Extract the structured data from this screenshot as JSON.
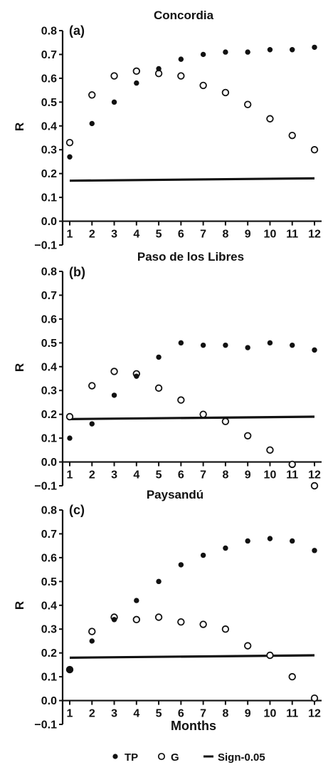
{
  "chart_data": [
    {
      "type": "scatter",
      "panel_label": "(a)",
      "title": "Concordia",
      "ylabel": "R",
      "xlabel": "",
      "ylim": [
        -0.1,
        0.8
      ],
      "yticks": [
        "0.8",
        "0.7",
        "0.6",
        "0.5",
        "0.4",
        "0.3",
        "0.2",
        "0.1",
        "0.0",
        "−0.1"
      ],
      "x": [
        1,
        2,
        3,
        4,
        5,
        6,
        7,
        8,
        9,
        10,
        11,
        12
      ],
      "xticks": [
        "1",
        "2",
        "3",
        "4",
        "5",
        "6",
        "7",
        "8",
        "9",
        "10",
        "11",
        "12"
      ],
      "series": [
        {
          "name": "TP",
          "marker": "filled",
          "values": [
            0.27,
            0.41,
            0.5,
            0.58,
            0.64,
            0.68,
            0.7,
            0.71,
            0.71,
            0.72,
            0.72,
            0.73
          ]
        },
        {
          "name": "G",
          "marker": "open",
          "values": [
            0.33,
            0.53,
            0.61,
            0.63,
            0.62,
            0.61,
            0.57,
            0.54,
            0.49,
            0.43,
            0.36,
            0.3
          ]
        },
        {
          "name": "Sign-0.05",
          "marker": "line",
          "values": [
            0.17,
            0.17,
            0.17,
            0.17,
            0.17,
            0.17,
            0.17,
            0.17,
            0.17,
            0.18,
            0.18,
            0.18
          ]
        }
      ]
    },
    {
      "type": "scatter",
      "panel_label": "(b)",
      "title": "Paso de los Libres",
      "ylabel": "R",
      "xlabel": "",
      "ylim": [
        -0.1,
        0.8
      ],
      "yticks": [
        "0.8",
        "0.7",
        "0.6",
        "0.5",
        "0.4",
        "0.3",
        "0.2",
        "0.1",
        "0.0",
        "−0.1"
      ],
      "x": [
        1,
        2,
        3,
        4,
        5,
        6,
        7,
        8,
        9,
        10,
        11,
        12
      ],
      "xticks": [
        "1",
        "2",
        "3",
        "4",
        "5",
        "6",
        "7",
        "8",
        "9",
        "10",
        "11",
        "12"
      ],
      "series": [
        {
          "name": "TP",
          "marker": "filled",
          "values": [
            0.1,
            0.16,
            0.28,
            0.36,
            0.44,
            0.5,
            0.49,
            0.49,
            0.48,
            0.5,
            0.49,
            0.47
          ]
        },
        {
          "name": "G",
          "marker": "open",
          "values": [
            0.19,
            0.32,
            0.38,
            0.37,
            0.31,
            0.26,
            0.2,
            0.17,
            0.11,
            0.05,
            -0.01,
            -0.1
          ]
        },
        {
          "name": "Sign-0.05",
          "marker": "line",
          "values": [
            0.18,
            0.18,
            0.18,
            0.18,
            0.18,
            0.18,
            0.19,
            0.19,
            0.19,
            0.19,
            0.19,
            0.19
          ]
        }
      ]
    },
    {
      "type": "scatter",
      "panel_label": "(c)",
      "title": "Paysandú",
      "ylabel": "R",
      "xlabel": "Months",
      "ylim": [
        -0.1,
        0.8
      ],
      "yticks": [
        "0.8",
        "0.7",
        "0.6",
        "0.5",
        "0.4",
        "0.3",
        "0.2",
        "0.1",
        "0.0",
        "−0.1"
      ],
      "x": [
        1,
        2,
        3,
        4,
        5,
        6,
        7,
        8,
        9,
        10,
        11,
        12
      ],
      "xticks": [
        "1",
        "2",
        "3",
        "4",
        "5",
        "6",
        "7",
        "8",
        "9",
        "10",
        "11",
        "12"
      ],
      "series": [
        {
          "name": "TP",
          "marker": "filled",
          "values": [
            0.13,
            0.25,
            0.34,
            0.42,
            0.5,
            0.57,
            0.61,
            0.64,
            0.67,
            0.68,
            0.67,
            0.63
          ]
        },
        {
          "name": "G",
          "marker": "open",
          "values": [
            0.13,
            0.29,
            0.35,
            0.34,
            0.35,
            0.33,
            0.32,
            0.3,
            0.23,
            0.19,
            0.1,
            0.01
          ]
        },
        {
          "name": "Sign-0.05",
          "marker": "line",
          "values": [
            0.18,
            0.18,
            0.18,
            0.18,
            0.18,
            0.18,
            0.19,
            0.19,
            0.19,
            0.19,
            0.19,
            0.19
          ]
        }
      ]
    }
  ],
  "legend": {
    "placement": "bottom",
    "items": [
      {
        "label": "TP",
        "marker": "filled"
      },
      {
        "label": "G",
        "marker": "open"
      },
      {
        "label": "Sign-0.05",
        "marker": "line"
      }
    ]
  }
}
